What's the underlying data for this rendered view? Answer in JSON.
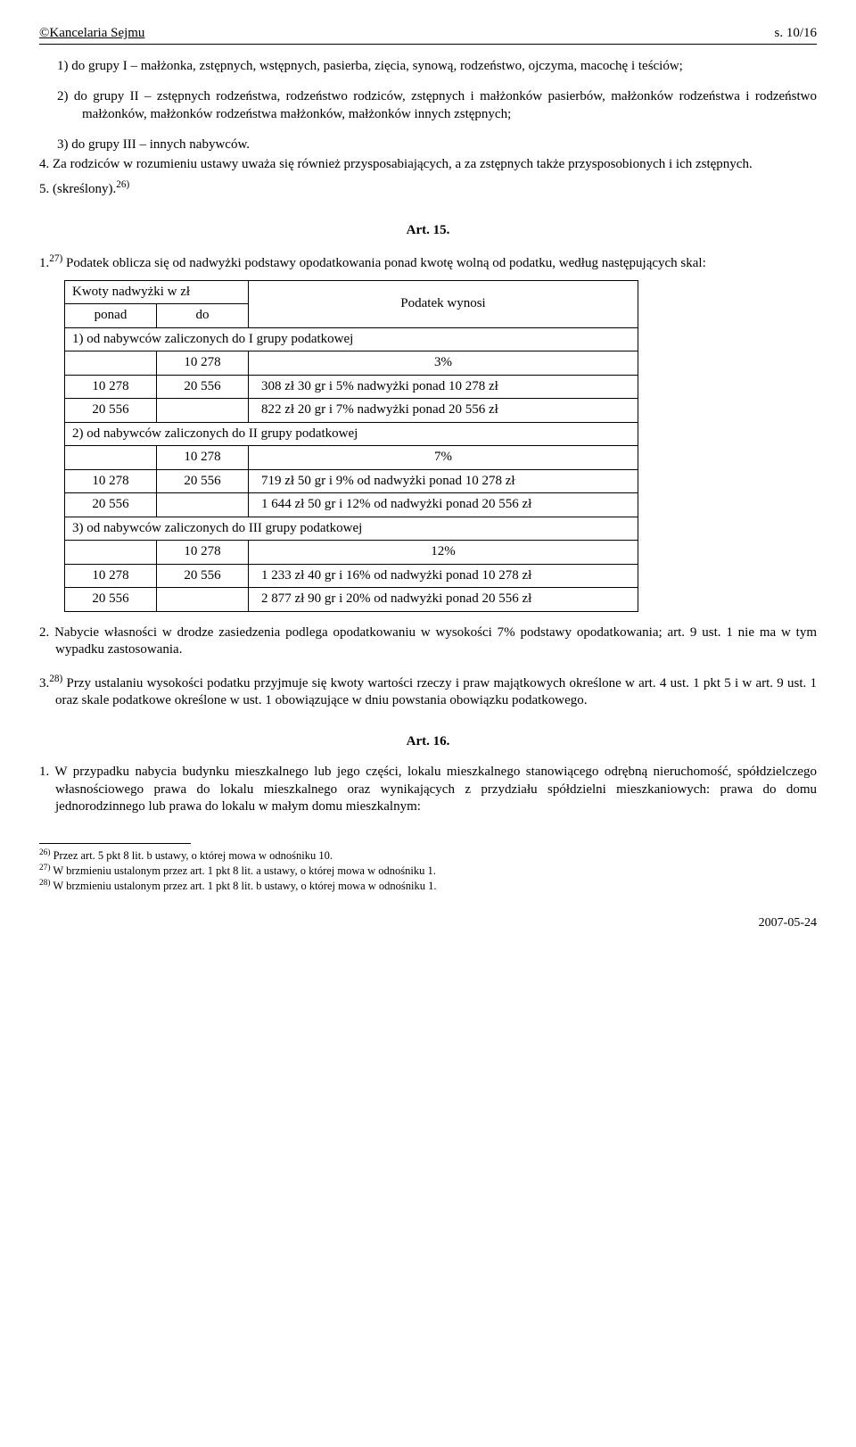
{
  "header": {
    "left": "©Kancelaria Sejmu",
    "right": "s. 10/16"
  },
  "list1": {
    "item1": "1) do grupy I – małżonka, zstępnych, wstępnych, pasierba, zięcia, synową, rodzeństwo, ojczyma, macochę i teściów;",
    "item2": "2) do grupy II – zstępnych rodzeństwa, rodzeństwo rodziców, zstępnych i małżonków pasierbów, małżonków rodzeństwa i rodzeństwo małżonków, małżonków rodzeństwa małżonków, małżonków innych zstępnych;",
    "item3": "3) do grupy III – innych nabywców."
  },
  "para4": "4. Za rodziców w rozumieniu ustawy uważa się również przysposabiających, a za zstępnych także przysposobionych i ich zstępnych.",
  "para5_a": "5. (skreślony).",
  "para5_sup": "26)",
  "art15": {
    "title": "Art. 15.",
    "intro_a": "1.",
    "intro_sup": "27)",
    "intro_b": " Podatek oblicza się od nadwyżki podstawy opodatkowania ponad kwotę wolną od podatku, według następujących skal:",
    "th_kwoty": "Kwoty nadwyżki w zł",
    "th_pod": "Podatek wynosi",
    "sub_ponad": "ponad",
    "sub_do": "do",
    "cat1": "1) od nabywców zaliczonych do I grupy podatkowej",
    "r1": {
      "c2": "10 278",
      "c3": "3%"
    },
    "r2": {
      "c1": "10 278",
      "c2": "20 556",
      "c3": "308 zł 30 gr i 5% nadwyżki ponad 10 278 zł"
    },
    "r3": {
      "c1": "20 556",
      "c3": "822 zł 20 gr i 7% nadwyżki ponad 20 556 zł"
    },
    "cat2": "2) od nabywców zaliczonych do II grupy podatkowej",
    "r4": {
      "c2": "10 278",
      "c3": "7%"
    },
    "r5": {
      "c1": "10 278",
      "c2": "20 556",
      "c3": "719 zł 50 gr i 9% od nadwyżki ponad 10 278 zł"
    },
    "r6": {
      "c1": "20 556",
      "c3": "1 644 zł 50 gr i 12% od nadwyżki ponad 20 556 zł"
    },
    "cat3": "3) od nabywców zaliczonych do III grupy podatkowej",
    "r7": {
      "c2": "10 278",
      "c3": "12%"
    },
    "r8": {
      "c1": "10 278",
      "c2": "20 556",
      "c3": "1 233 zł 40 gr i 16% od nadwyżki ponad 10 278 zł"
    },
    "r9": {
      "c1": "20 556",
      "c3": "2 877 zł 90 gr i 20% od nadwyżki ponad 20 556 zł"
    }
  },
  "para_n2": "2. Nabycie własności w drodze zasiedzenia podlega opodatkowaniu w wysokości 7% podstawy opodatkowania; art. 9 ust. 1 nie ma w tym wypadku zastosowania.",
  "para_n3_a": "3.",
  "para_n3_sup": "28)",
  "para_n3_b": " Przy ustalaniu wysokości podatku przyjmuje się kwoty wartości rzeczy i praw majątkowych określone w art. 4 ust. 1 pkt 5 i w art. 9 ust. 1 oraz skale podatkowe określone w ust. 1 obowiązujące w dniu powstania obowiązku podatkowego.",
  "art16": {
    "title": "Art. 16.",
    "p1": "1. W przypadku nabycia budynku mieszkalnego lub jego części, lokalu mieszkalnego stanowiącego odrębną nieruchomość, spółdzielczego własnościowego prawa do lokalu mieszkalnego oraz wynikających z przydziału spółdzielni mieszkaniowych: prawa do domu jednorodzinnego lub prawa do lokalu w małym domu mieszkalnym:"
  },
  "footnotes": {
    "f26_sup": "26)",
    "f26": " Przez art. 5 pkt 8 lit. b ustawy, o której mowa w odnośniku 10.",
    "f27_sup": "27)",
    "f27": " W brzmieniu ustalonym przez art. 1 pkt 8 lit. a ustawy, o której mowa w odnośniku 1.",
    "f28_sup": "28)",
    "f28": " W brzmieniu ustalonym przez art. 1 pkt 8 lit. b ustawy, o której mowa w odnośniku 1."
  },
  "footer_date": "2007-05-24"
}
